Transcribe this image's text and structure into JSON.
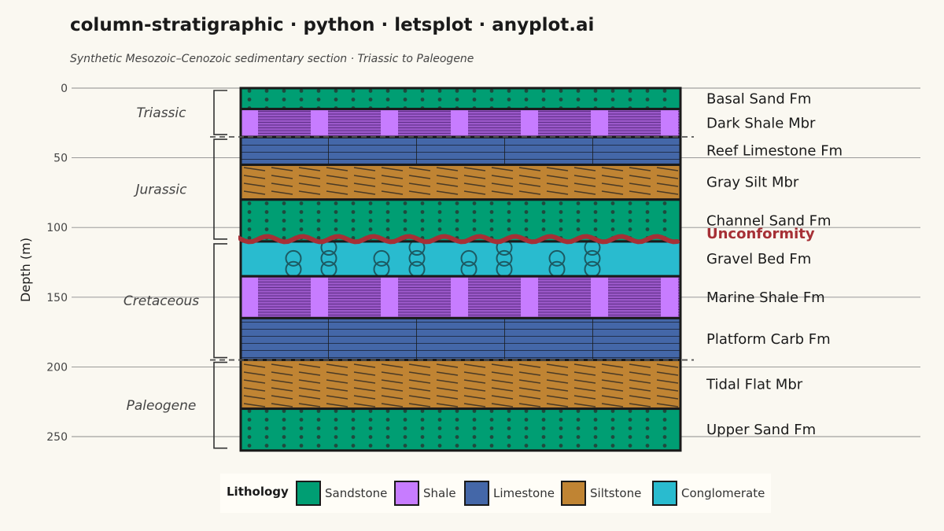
{
  "title": "column-stratigraphic · python · letsplot · anyplot.ai",
  "subtitle": "Synthetic Mesozoic–Cenozoic sedimentary section · Triassic to Paleogene",
  "colors": {
    "Sandstone": "#009E73",
    "Shale": "#C77CFF",
    "Limestone": "#4467A8",
    "Siltstone": "#C08433",
    "Conglomerate": "#29BBCF",
    "unconformity": "#A63036"
  },
  "chart_data": {
    "type": "stratigraphic-column",
    "ylabel": "Depth (m)",
    "yticks": [
      0,
      50,
      100,
      150,
      200,
      250
    ],
    "ylim": [
      0,
      260
    ],
    "y_reversed": true,
    "layers": [
      {
        "name": "Basal Sand Fm",
        "lithology": "Sandstone",
        "top": 0,
        "bottom": 15
      },
      {
        "name": "Dark Shale Mbr",
        "lithology": "Shale",
        "top": 15,
        "bottom": 35
      },
      {
        "name": "Reef Limestone Fm",
        "lithology": "Limestone",
        "top": 35,
        "bottom": 55
      },
      {
        "name": "Gray Silt Mbr",
        "lithology": "Siltstone",
        "top": 55,
        "bottom": 80
      },
      {
        "name": "Channel Sand Fm",
        "lithology": "Sandstone",
        "top": 80,
        "bottom": 110
      },
      {
        "name": "Gravel Bed Fm",
        "lithology": "Conglomerate",
        "top": 110,
        "bottom": 135
      },
      {
        "name": "Marine Shale Fm",
        "lithology": "Shale",
        "top": 135,
        "bottom": 165
      },
      {
        "name": "Platform Carb Fm",
        "lithology": "Limestone",
        "top": 165,
        "bottom": 195
      },
      {
        "name": "Tidal Flat Mbr",
        "lithology": "Siltstone",
        "top": 195,
        "bottom": 230
      },
      {
        "name": "Upper Sand Fm",
        "lithology": "Sandstone",
        "top": 230,
        "bottom": 260
      }
    ],
    "periods": [
      {
        "name": "Triassic",
        "top": 0,
        "bottom": 35
      },
      {
        "name": "Jurassic",
        "top": 35,
        "bottom": 110
      },
      {
        "name": "Cretaceous",
        "top": 110,
        "bottom": 195
      },
      {
        "name": "Paleogene",
        "top": 195,
        "bottom": 260
      }
    ],
    "unconformity": {
      "label": "Unconformity",
      "depth": 110
    },
    "legend": {
      "title": "Lithology",
      "entries": [
        "Sandstone",
        "Shale",
        "Limestone",
        "Siltstone",
        "Conglomerate"
      ],
      "position": "bottom"
    }
  }
}
